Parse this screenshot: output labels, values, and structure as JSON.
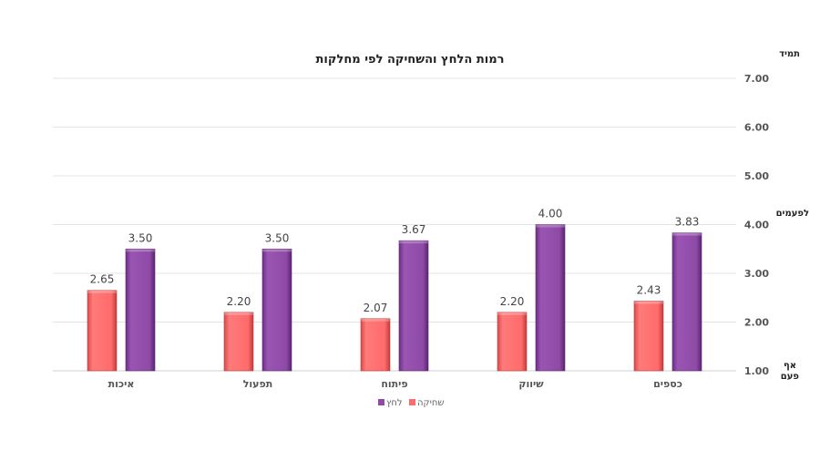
{
  "chart_data": {
    "type": "bar",
    "title": "רמות הלחץ והשחיקה לפי מחלקות",
    "categories": [
      "כספים",
      "שיווק",
      "פיתוח",
      "תפעול",
      "איכות"
    ],
    "series": [
      {
        "name": "לחץ",
        "values": [
          3.83,
          4.0,
          3.67,
          3.5,
          3.5
        ],
        "color": "#8e4aa6"
      },
      {
        "name": "שחיקה",
        "values": [
          2.43,
          2.2,
          2.07,
          2.2,
          2.65
        ],
        "color": "#ff6b6b"
      }
    ],
    "data_labels": {
      "לחץ": [
        "3.83",
        "4.00",
        "3.67",
        "3.50",
        "3.50"
      ],
      "שחיקה": [
        "2.43",
        "2.20",
        "2.07",
        "2.20",
        "2.65"
      ]
    },
    "ylim": [
      1,
      7
    ],
    "yticks": [
      "1.00",
      "2.00",
      "3.00",
      "4.00",
      "5.00",
      "6.00",
      "7.00"
    ],
    "y_axis_side": "right",
    "scale_labels": {
      "top": "תמיד",
      "middle": "לפעמים",
      "bottom_line1": "אף",
      "bottom_line2": "פעם"
    },
    "grid": true,
    "legend_position": "bottom",
    "category_order": "right-to-left"
  }
}
